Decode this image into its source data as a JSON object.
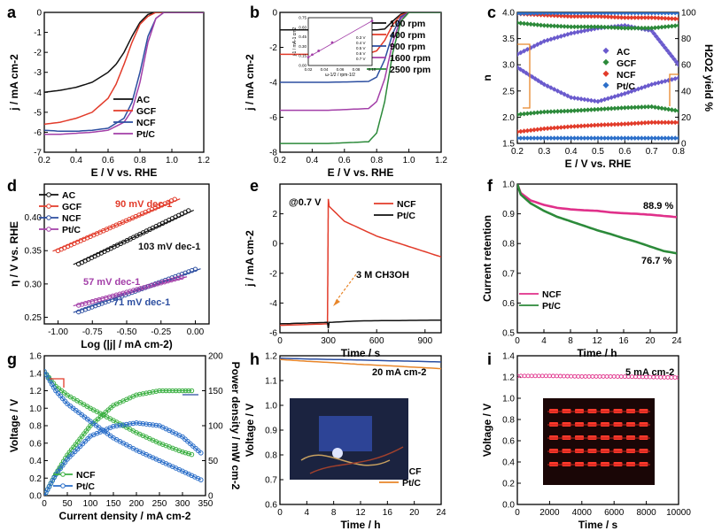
{
  "chart_data": [
    {
      "panel": "a",
      "type": "line",
      "xlabel": "E / V vs. RHE",
      "ylabel": "j / mA cm-2",
      "xlim": [
        0.2,
        1.2
      ],
      "ylim": [
        -7,
        0
      ],
      "xticks": [
        "0.2",
        "0.4",
        "0.6",
        "0.8",
        "1.0",
        "1.2"
      ],
      "yticks": [
        "0",
        "-1",
        "-2",
        "-3",
        "-4",
        "-5",
        "-6",
        "-7"
      ],
      "legend": [
        "AC",
        "GCF",
        "NCF",
        "Pt/C"
      ],
      "series": [
        {
          "name": "AC",
          "color": "#111111",
          "x": [
            0.2,
            0.3,
            0.4,
            0.5,
            0.6,
            0.65,
            0.7,
            0.75,
            0.8,
            0.85,
            0.9,
            1.0,
            1.2
          ],
          "y": [
            -4.0,
            -3.9,
            -3.75,
            -3.5,
            -3.0,
            -2.6,
            -2.0,
            -1.2,
            -0.5,
            -0.1,
            0,
            0,
            0
          ]
        },
        {
          "name": "GCF",
          "color": "#e23b2a",
          "x": [
            0.2,
            0.3,
            0.4,
            0.5,
            0.6,
            0.65,
            0.7,
            0.75,
            0.8,
            0.85,
            0.9,
            1.0,
            1.2
          ],
          "y": [
            -5.6,
            -5.5,
            -5.3,
            -5.0,
            -4.3,
            -3.6,
            -2.6,
            -1.5,
            -0.6,
            -0.2,
            0,
            0,
            0
          ]
        },
        {
          "name": "NCF",
          "color": "#2c4ea0",
          "x": [
            0.2,
            0.3,
            0.4,
            0.5,
            0.6,
            0.7,
            0.75,
            0.8,
            0.85,
            0.9,
            0.95,
            1.0,
            1.2
          ],
          "y": [
            -5.9,
            -5.95,
            -5.95,
            -5.9,
            -5.8,
            -5.3,
            -4.5,
            -3.0,
            -1.2,
            -0.3,
            0,
            0,
            0
          ]
        },
        {
          "name": "Pt/C",
          "color": "#a33fa8",
          "x": [
            0.2,
            0.3,
            0.4,
            0.5,
            0.6,
            0.7,
            0.75,
            0.8,
            0.85,
            0.9,
            0.95,
            1.0,
            1.2
          ],
          "y": [
            -6.1,
            -6.1,
            -6.05,
            -6.0,
            -5.9,
            -5.5,
            -4.9,
            -3.5,
            -1.5,
            -0.3,
            0,
            0,
            0
          ]
        }
      ]
    },
    {
      "panel": "b",
      "type": "line",
      "xlabel": "E / V vs. RHE",
      "ylabel": "j / mA cm-2",
      "xlim": [
        0.2,
        1.2
      ],
      "ylim": [
        -8,
        0
      ],
      "xticks": [
        "0.2",
        "0.4",
        "0.6",
        "0.8",
        "1.0",
        "1.2"
      ],
      "yticks": [
        "0",
        "-2",
        "-4",
        "-6",
        "-8"
      ],
      "legend": [
        "100 rpm",
        "400 rpm",
        "900 rpm",
        "1600 rpm",
        "2500 rpm"
      ],
      "series": [
        {
          "name": "100 rpm",
          "color": "#111111",
          "x": [
            0.2,
            0.5,
            0.8,
            0.85,
            0.9,
            0.95,
            1.0,
            1.2
          ],
          "y": [
            -1.0,
            -1.0,
            -1.0,
            -0.95,
            -0.5,
            -0.1,
            0,
            0
          ]
        },
        {
          "name": "400 rpm",
          "color": "#e23b2a",
          "x": [
            0.2,
            0.5,
            0.75,
            0.8,
            0.85,
            0.9,
            0.95,
            1.0,
            1.2
          ],
          "y": [
            -2.4,
            -2.4,
            -2.35,
            -2.2,
            -1.6,
            -0.7,
            -0.15,
            0,
            0
          ]
        },
        {
          "name": "900 rpm",
          "color": "#2c4ea0",
          "x": [
            0.2,
            0.5,
            0.75,
            0.8,
            0.85,
            0.9,
            0.95,
            1.0,
            1.2
          ],
          "y": [
            -4.0,
            -4.0,
            -3.95,
            -3.7,
            -2.7,
            -1.2,
            -0.25,
            0,
            0
          ]
        },
        {
          "name": "1600 rpm",
          "color": "#a33fa8",
          "x": [
            0.2,
            0.5,
            0.75,
            0.8,
            0.85,
            0.9,
            0.95,
            1.0,
            1.2
          ],
          "y": [
            -5.6,
            -5.6,
            -5.5,
            -5.1,
            -3.8,
            -1.7,
            -0.35,
            0,
            0
          ]
        },
        {
          "name": "2500 rpm",
          "color": "#2c8a3a",
          "x": [
            0.2,
            0.5,
            0.75,
            0.8,
            0.85,
            0.9,
            0.95,
            1.0,
            1.2
          ],
          "y": [
            -7.5,
            -7.5,
            -7.4,
            -6.9,
            -5.1,
            -2.3,
            -0.5,
            0,
            0
          ]
        }
      ],
      "inset": {
        "xlabel": "ω-1/2 / rpm-1/2",
        "ylabel": "j-1 / mA-1 cm2",
        "xticks": [
          "0.02",
          "0.04",
          "0.06",
          "0.08",
          "0.10"
        ],
        "yticks": [
          "0.00",
          "0.15",
          "0.30",
          "0.45",
          "0.60",
          "0.75"
        ],
        "legend": [
          "0.3 V",
          "0.4 V",
          "0.5 V",
          "0.6 V",
          "0.7 V"
        ],
        "x": [
          0.02,
          0.025,
          0.033,
          0.05,
          0.1
        ],
        "y": [
          0.13,
          0.17,
          0.23,
          0.36,
          0.7
        ]
      }
    },
    {
      "panel": "c",
      "type": "scatter",
      "xlabel": "E / V vs. RHE",
      "ylabel": "n",
      "ylabel_right": "H2O2 yield %",
      "xlim": [
        0.2,
        0.8
      ],
      "ylim": [
        1.5,
        4.0
      ],
      "ylim_right": [
        0,
        100
      ],
      "xticks": [
        "0.2",
        "0.3",
        "0.4",
        "0.5",
        "0.6",
        "0.7",
        "0.8"
      ],
      "yticks": [
        "1.5",
        "2.0",
        "2.5",
        "3.0",
        "3.5",
        "4.0"
      ],
      "yticks_right": [
        "0",
        "20",
        "40",
        "60",
        "80",
        "100"
      ],
      "legend": [
        "AC",
        "GCF",
        "NCF",
        "Pt/C"
      ],
      "series": [
        {
          "name": "AC n",
          "color": "#6a5acd",
          "x": [
            0.2,
            0.3,
            0.4,
            0.5,
            0.6,
            0.7,
            0.8
          ],
          "y": [
            3.2,
            3.45,
            3.6,
            3.7,
            3.75,
            3.65,
            3.0
          ]
        },
        {
          "name": "AC H2O2",
          "color": "#6a5acd",
          "x": [
            0.2,
            0.3,
            0.4,
            0.5,
            0.6,
            0.7,
            0.8
          ],
          "y2": [
            58,
            45,
            35,
            32,
            38,
            45,
            50
          ]
        },
        {
          "name": "GCF n",
          "color": "#2c8a3a",
          "x": [
            0.2,
            0.3,
            0.4,
            0.5,
            0.6,
            0.7,
            0.8
          ],
          "y": [
            2.05,
            2.1,
            2.12,
            2.15,
            2.18,
            2.2,
            2.12
          ]
        },
        {
          "name": "GCF H2O2",
          "color": "#2c8a3a",
          "x": [
            0.2,
            0.3,
            0.4,
            0.5,
            0.6,
            0.7,
            0.8
          ],
          "y2": [
            92,
            90,
            89,
            89,
            88,
            88,
            90
          ]
        },
        {
          "name": "NCF n",
          "color": "#e23b2a",
          "x": [
            0.2,
            0.3,
            0.4,
            0.5,
            0.6,
            0.7,
            0.8
          ],
          "y": [
            1.72,
            1.78,
            1.82,
            1.85,
            1.87,
            1.9,
            1.9
          ]
        },
        {
          "name": "NCF H2O2",
          "color": "#e23b2a",
          "x": [
            0.2,
            0.3,
            0.4,
            0.5,
            0.6,
            0.7,
            0.8
          ],
          "y2": [
            99,
            98,
            97,
            97,
            96,
            96,
            95
          ]
        },
        {
          "name": "Pt/C n",
          "color": "#2c6fc9",
          "x": [
            0.2,
            0.3,
            0.4,
            0.5,
            0.6,
            0.7,
            0.8
          ],
          "y": [
            3.98,
            3.99,
            3.99,
            3.99,
            3.99,
            3.99,
            3.99
          ]
        },
        {
          "name": "Pt/C H2O2",
          "color": "#2c6fc9",
          "x": [
            0.2,
            0.3,
            0.4,
            0.5,
            0.6,
            0.7,
            0.8
          ],
          "y2": [
            4,
            4,
            4,
            4,
            4,
            4,
            4
          ]
        }
      ]
    },
    {
      "panel": "d",
      "type": "scatter",
      "xlabel": "Log (|j| / mA cm-2)",
      "ylabel": "η / V vs. RHE",
      "xlim": [
        -1.1,
        0.1
      ],
      "ylim": [
        0.24,
        0.45
      ],
      "xticks": [
        "-1.00",
        "-0.75",
        "-0.50",
        "-0.25",
        "0.00"
      ],
      "yticks": [
        "0.25",
        "0.30",
        "0.35",
        "0.40"
      ],
      "legend": [
        "AC",
        "GCF",
        "NCF",
        "Pt/C"
      ],
      "annotations": [
        "90 mV dec-1",
        "103 mV dec-1",
        "57 mV dec-1",
        "71 mV dec-1"
      ],
      "series": [
        {
          "name": "AC",
          "color": "#111111",
          "x": [
            -0.85,
            -0.05
          ],
          "y": [
            0.33,
            0.41
          ]
        },
        {
          "name": "GCF",
          "color": "#e23b2a",
          "x": [
            -1.0,
            -0.15
          ],
          "y": [
            0.35,
            0.427
          ]
        },
        {
          "name": "NCF",
          "color": "#2c4ea0",
          "x": [
            -0.85,
            0.0
          ],
          "y": [
            0.258,
            0.322
          ]
        },
        {
          "name": "Pt/C",
          "color": "#a33fa8",
          "x": [
            -0.85,
            -0.1
          ],
          "y": [
            0.268,
            0.31
          ]
        }
      ]
    },
    {
      "panel": "e",
      "type": "line",
      "xlabel": "Time / s",
      "ylabel": "j / mA cm-2",
      "xlim": [
        0,
        1000
      ],
      "ylim": [
        -6,
        4
      ],
      "xticks": [
        "0",
        "300",
        "600",
        "900"
      ],
      "yticks": [
        "2",
        "0",
        "-2",
        "-4",
        "-6"
      ],
      "legend": [
        "NCF",
        "Pt/C"
      ],
      "annotations": [
        "@0.7 V",
        "3 M CH3OH"
      ],
      "series": [
        {
          "name": "NCF",
          "color": "#e23b2a",
          "x": [
            0,
            150,
            295,
            300,
            305,
            400,
            600,
            800,
            1000
          ],
          "y": [
            -5.5,
            -5.45,
            -5.4,
            3.0,
            2.5,
            1.5,
            0.5,
            -0.2,
            -0.9
          ]
        },
        {
          "name": "Pt/C",
          "color": "#111111",
          "x": [
            0,
            150,
            295,
            300,
            305,
            500,
            1000
          ],
          "y": [
            -5.4,
            -5.35,
            -5.3,
            -5.7,
            -5.3,
            -5.2,
            -5.15
          ]
        }
      ]
    },
    {
      "panel": "f",
      "type": "line",
      "xlabel": "Time / h",
      "ylabel": "Current retention",
      "xlim": [
        0,
        24
      ],
      "ylim": [
        0.5,
        1.0
      ],
      "xticks": [
        "0",
        "4",
        "8",
        "12",
        "16",
        "20",
        "24"
      ],
      "yticks": [
        "1.0",
        "0.9",
        "0.8",
        "0.7",
        "0.6",
        "0.5"
      ],
      "legend": [
        "NCF",
        "Pt/C"
      ],
      "annotations": [
        "88.9 %",
        "76.7 %"
      ],
      "series": [
        {
          "name": "NCF",
          "color": "#e0308a",
          "x": [
            0,
            0.5,
            2,
            4,
            6,
            8,
            10,
            12,
            14,
            16,
            18,
            20,
            22,
            24
          ],
          "y": [
            1.0,
            0.97,
            0.945,
            0.93,
            0.92,
            0.915,
            0.912,
            0.91,
            0.905,
            0.902,
            0.9,
            0.897,
            0.893,
            0.889
          ]
        },
        {
          "name": "Pt/C",
          "color": "#2c8a3a",
          "x": [
            0,
            0.5,
            2,
            4,
            6,
            8,
            10,
            12,
            14,
            16,
            18,
            20,
            22,
            24
          ],
          "y": [
            1.0,
            0.965,
            0.935,
            0.91,
            0.89,
            0.875,
            0.86,
            0.845,
            0.832,
            0.818,
            0.805,
            0.79,
            0.775,
            0.767
          ]
        }
      ]
    },
    {
      "panel": "g",
      "type": "line",
      "xlabel": "Current density / mA cm-2",
      "ylabel": "Voltage / V",
      "ylabel_right": "Power density / mW cm-2",
      "xlim": [
        0,
        350
      ],
      "ylim": [
        0,
        1.6
      ],
      "ylim_right": [
        0,
        200
      ],
      "xticks": [
        "0",
        "50",
        "100",
        "150",
        "200",
        "250",
        "300",
        "350"
      ],
      "yticks": [
        "0.0",
        "0.2",
        "0.4",
        "0.6",
        "0.8",
        "1.0",
        "1.2",
        "1.4",
        "1.6"
      ],
      "yticks_right": [
        "0",
        "50",
        "100",
        "150",
        "200"
      ],
      "legend": [
        "NCF",
        "Pt/C"
      ],
      "series": [
        {
          "name": "NCF voltage",
          "color": "#3cb043",
          "x": [
            0,
            25,
            50,
            100,
            150,
            200,
            250,
            300,
            320
          ],
          "y": [
            1.42,
            1.25,
            1.15,
            1.0,
            0.86,
            0.72,
            0.6,
            0.5,
            0.47
          ]
        },
        {
          "name": "NCF power",
          "color": "#3cb043",
          "x": [
            0,
            25,
            50,
            100,
            150,
            200,
            250,
            300,
            320
          ],
          "y2": [
            0,
            31,
            58,
            100,
            129,
            144,
            150,
            150,
            150
          ]
        },
        {
          "name": "Pt/C voltage",
          "color": "#2c6fc9",
          "x": [
            0,
            25,
            50,
            100,
            150,
            200,
            250,
            300,
            340
          ],
          "y": [
            1.42,
            1.2,
            1.05,
            0.85,
            0.66,
            0.52,
            0.4,
            0.28,
            0.18
          ]
        },
        {
          "name": "Pt/C power",
          "color": "#2c6fc9",
          "x": [
            0,
            25,
            50,
            100,
            150,
            200,
            250,
            300,
            340
          ],
          "y2": [
            0,
            30,
            52,
            85,
            99,
            104,
            100,
            84,
            61
          ]
        }
      ]
    },
    {
      "panel": "h",
      "type": "line",
      "xlabel": "Time / h",
      "ylabel": "Voltage / V",
      "xlim": [
        0,
        24
      ],
      "ylim": [
        0.6,
        1.2
      ],
      "xticks": [
        "0",
        "4",
        "8",
        "12",
        "16",
        "20",
        "24"
      ],
      "yticks": [
        "1.2",
        "1.1",
        "1.0",
        "0.9",
        "0.8",
        "0.7",
        "0.6"
      ],
      "legend": [
        "NCF",
        "Pt/C"
      ],
      "annotations": [
        "20 mA cm-2"
      ],
      "series": [
        {
          "name": "NCF",
          "color": "#2c4ea0",
          "x": [
            0,
            4,
            8,
            12,
            16,
            20,
            24
          ],
          "y": [
            1.19,
            1.187,
            1.185,
            1.183,
            1.18,
            1.178,
            1.175
          ]
        },
        {
          "name": "Pt/C",
          "color": "#e8862a",
          "x": [
            0,
            4,
            8,
            12,
            16,
            20,
            24
          ],
          "y": [
            1.185,
            1.178,
            1.172,
            1.165,
            1.16,
            1.154,
            1.148
          ]
        }
      ]
    },
    {
      "panel": "i",
      "type": "line",
      "xlabel": "Time / s",
      "ylabel": "Voltage / V",
      "xlim": [
        0,
        10000
      ],
      "ylim": [
        0,
        1.4
      ],
      "xticks": [
        "0",
        "2000",
        "4000",
        "6000",
        "8000",
        "10000"
      ],
      "yticks": [
        "0.0",
        "0.2",
        "0.4",
        "0.6",
        "0.8",
        "1.0",
        "1.2",
        "1.4"
      ],
      "annotations": [
        "5 mA cm-2"
      ],
      "series": [
        {
          "name": "NCF",
          "color": "#e0308a",
          "x": [
            0,
            2000,
            4000,
            6000,
            8000,
            10000
          ],
          "y": [
            1.21,
            1.21,
            1.205,
            1.205,
            1.2,
            1.195
          ]
        }
      ]
    }
  ]
}
